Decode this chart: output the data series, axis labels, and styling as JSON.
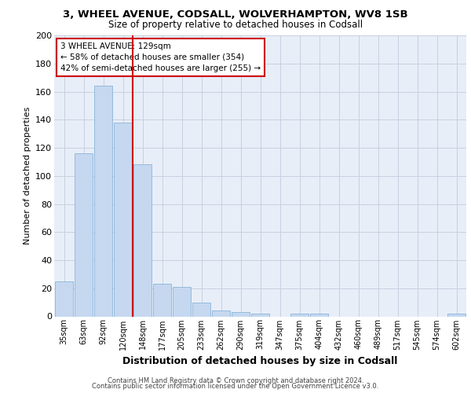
{
  "title_line1": "3, WHEEL AVENUE, CODSALL, WOLVERHAMPTON, WV8 1SB",
  "title_line2": "Size of property relative to detached houses in Codsall",
  "xlabel": "Distribution of detached houses by size in Codsall",
  "ylabel": "Number of detached properties",
  "categories": [
    "35sqm",
    "63sqm",
    "92sqm",
    "120sqm",
    "148sqm",
    "177sqm",
    "205sqm",
    "233sqm",
    "262sqm",
    "290sqm",
    "319sqm",
    "347sqm",
    "375sqm",
    "404sqm",
    "432sqm",
    "460sqm",
    "489sqm",
    "517sqm",
    "545sqm",
    "574sqm",
    "602sqm"
  ],
  "values": [
    25,
    116,
    164,
    138,
    108,
    23,
    21,
    10,
    4,
    3,
    2,
    0,
    2,
    2,
    0,
    0,
    0,
    0,
    0,
    0,
    2
  ],
  "bar_color": "#c5d8f0",
  "bar_edge_color": "#8ab4d8",
  "vline_x_index": 3,
  "vline_color": "#cc0000",
  "annotation_line1": "3 WHEEL AVENUE: 129sqm",
  "annotation_line2": "← 58% of detached houses are smaller (354)",
  "annotation_line3": "42% of semi-detached houses are larger (255) →",
  "annotation_box_color": "#ffffff",
  "annotation_box_edge": "#cc0000",
  "ylim": [
    0,
    200
  ],
  "yticks": [
    0,
    20,
    40,
    60,
    80,
    100,
    120,
    140,
    160,
    180,
    200
  ],
  "plot_bg_color": "#e8eef8",
  "footer_line1": "Contains HM Land Registry data © Crown copyright and database right 2024.",
  "footer_line2": "Contains public sector information licensed under the Open Government Licence v3.0.",
  "grid_color": "#c8d0e0"
}
